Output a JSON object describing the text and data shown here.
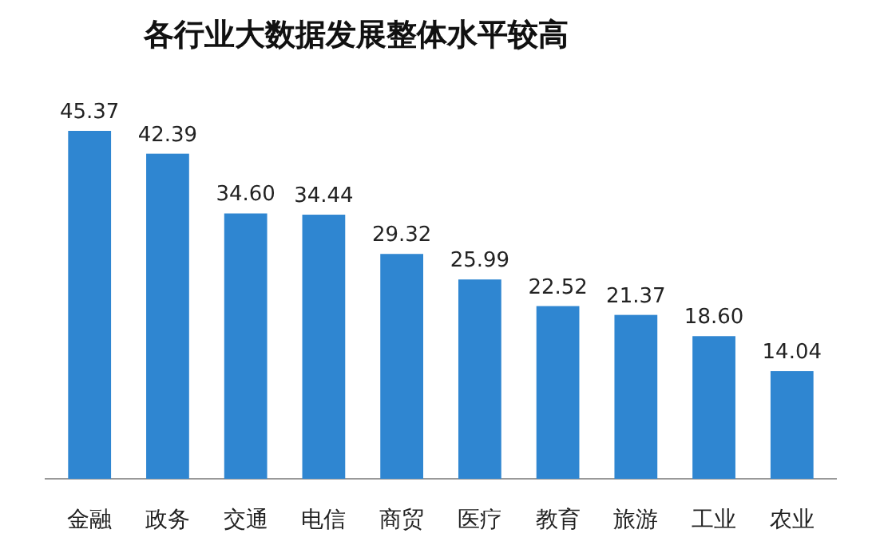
{
  "chart_data": {
    "type": "bar",
    "title": "各行业大数据发展整体水平较高",
    "categories": [
      "金融",
      "政务",
      "交通",
      "电信",
      "商贸",
      "医疗",
      "教育",
      "旅游",
      "工业",
      "农业"
    ],
    "values": [
      45.37,
      42.39,
      34.6,
      34.44,
      29.32,
      25.99,
      22.52,
      21.37,
      18.6,
      14.04
    ],
    "value_labels": [
      "45.37",
      "42.39",
      "34.60",
      "34.44",
      "29.32",
      "25.99",
      "22.52",
      "21.37",
      "18.60",
      "14.04"
    ],
    "color": "#2f86d1"
  }
}
